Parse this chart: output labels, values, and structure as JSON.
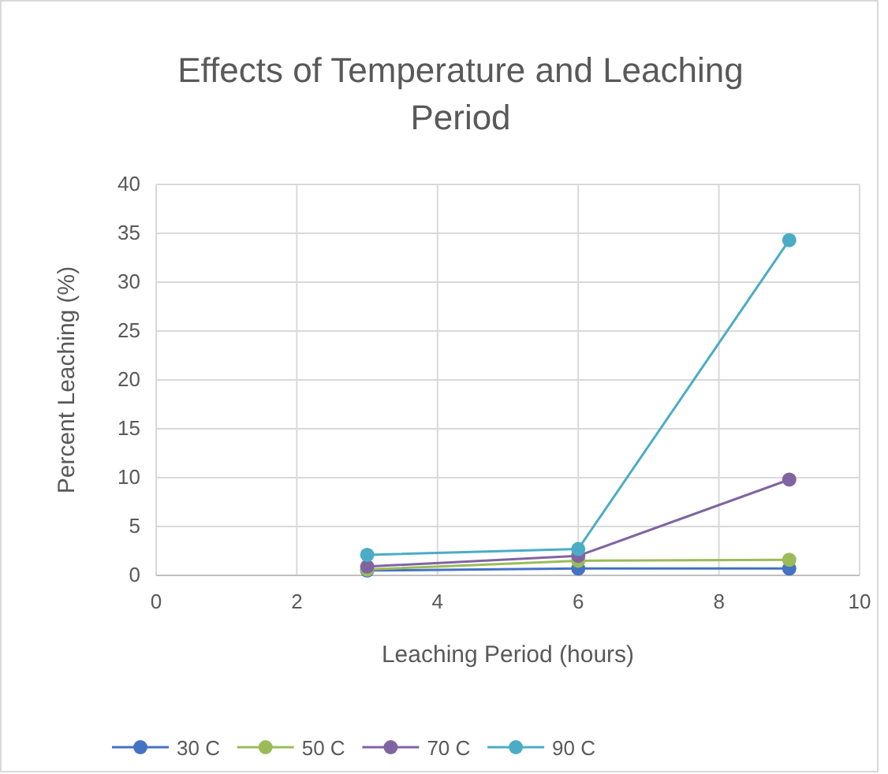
{
  "chart_data": {
    "type": "line",
    "title": "Effects of Temperature and Leaching Period",
    "xlabel": "Leaching Period (hours)",
    "ylabel": "Percent Leaching (%)",
    "x": [
      3,
      6,
      9
    ],
    "series": [
      {
        "name": "30 C",
        "color": "#4472c4",
        "values": [
          0.5,
          0.7,
          0.7
        ]
      },
      {
        "name": "50 C",
        "color": "#9bbb59",
        "values": [
          0.6,
          1.5,
          1.6
        ]
      },
      {
        "name": "70 C",
        "color": "#8064a2",
        "values": [
          0.9,
          2.0,
          9.8
        ]
      },
      {
        "name": "90 C",
        "color": "#4bacc6",
        "values": [
          2.1,
          2.7,
          34.3
        ]
      }
    ],
    "xlim": [
      0,
      10
    ],
    "xticks": [
      0,
      2,
      4,
      6,
      8,
      10
    ],
    "ylim": [
      0,
      40
    ],
    "yticks": [
      0,
      5,
      10,
      15,
      20,
      25,
      30,
      35,
      40
    ],
    "grid": true,
    "legend": "bottom",
    "marker": "circle",
    "line_style": "solid"
  }
}
